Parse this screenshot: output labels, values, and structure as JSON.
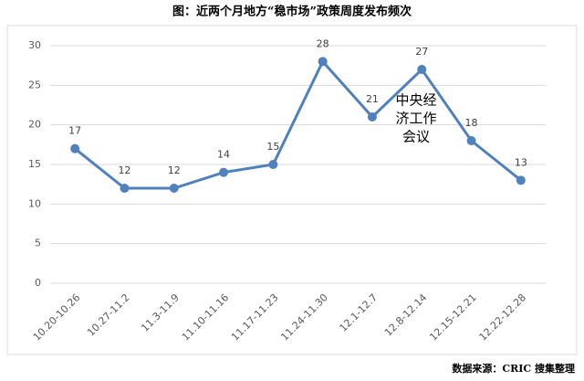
{
  "chart_data": {
    "type": "line",
    "title": "图：近两个月地方“稳市场”政策周度发布频次",
    "categories": [
      "10.20-10.26",
      "10.27-11.2",
      "11.3-11.9",
      "11.10-11.16",
      "11.17-11.23",
      "11.24-11.30",
      "12.1-12.7",
      "12.8-12.14",
      "12.15-12.21",
      "12.22-12.28"
    ],
    "values": [
      17,
      12,
      12,
      14,
      15,
      28,
      21,
      27,
      18,
      13
    ],
    "color": "#4f81bd",
    "ylim": [
      0,
      30
    ],
    "yticks": [
      0,
      5,
      10,
      15,
      20,
      25,
      30
    ],
    "grid": true,
    "annotation": [
      "中央经",
      "济工作",
      "会议"
    ],
    "source": "数据来源：CRIC 搜集整理"
  }
}
